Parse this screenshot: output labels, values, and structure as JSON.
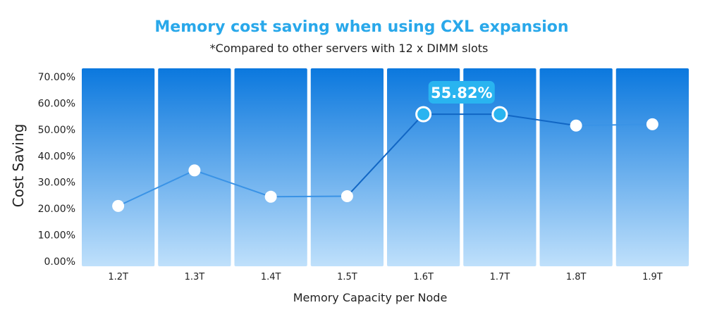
{
  "colors": {
    "title": "#29a8ea",
    "text": "#222222",
    "bar_top": "#0b78de",
    "bar_bottom": "#bfe0fb",
    "line": "#3a93e6",
    "line_dark": "#1166c4",
    "marker": "#ffffff",
    "highlight_marker": "#29b4f0",
    "highlight_label_bg": "#29b4f0"
  },
  "chart_data": {
    "type": "line",
    "title": "Memory cost saving when using CXL expansion",
    "subtitle": "*Compared to other servers with 12 x DIMM slots",
    "xlabel": "Memory Capacity per Node",
    "ylabel": "Cost Saving",
    "categories": [
      "1.2T",
      "1.3T",
      "1.4T",
      "1.5T",
      "1.6T",
      "1.7T",
      "1.8T",
      "1.9T"
    ],
    "y_ticks": [
      "0.00%",
      "10.00%",
      "20.00%",
      "30.00%",
      "40.00%",
      "50.00%",
      "60.00%",
      "70.00%"
    ],
    "ylim": [
      0,
      70
    ],
    "series": [
      {
        "values": [
          21.0,
          34.5,
          24.5,
          24.7,
          55.82,
          55.82,
          51.5,
          52.0
        ]
      }
    ],
    "highlight": {
      "indices": [
        4,
        5
      ],
      "label": "55.82%"
    },
    "grid": false,
    "legend": "none"
  }
}
